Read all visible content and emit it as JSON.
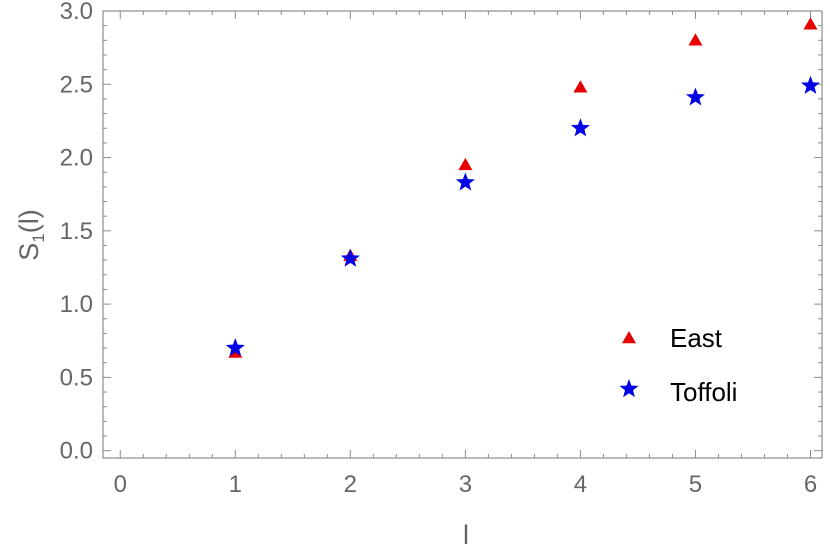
{
  "chart_data": {
    "type": "scatter",
    "title": "",
    "xlabel": "l",
    "ylabel_main": "S",
    "ylabel_sub": "1",
    "ylabel_tail": "(l)",
    "xlim": [
      -0.15,
      6.1
    ],
    "ylim": [
      -0.05,
      3.0
    ],
    "x_ticks": [
      0,
      1,
      2,
      3,
      4,
      5,
      6
    ],
    "x_tick_labels": [
      "0",
      "1",
      "2",
      "3",
      "4",
      "5",
      "6"
    ],
    "y_ticks": [
      0.0,
      0.5,
      1.0,
      1.5,
      2.0,
      2.5,
      3.0
    ],
    "y_tick_labels": [
      "0.0",
      "0.5",
      "1.0",
      "1.5",
      "2.0",
      "2.5",
      "3.0"
    ],
    "grid": false,
    "legend_position": "bottom-right",
    "series": [
      {
        "name": "East",
        "marker": "triangle",
        "color": "#e60000",
        "x": [
          1,
          2,
          3,
          4,
          5,
          6
        ],
        "y": [
          0.67,
          1.33,
          1.95,
          2.48,
          2.8,
          2.91
        ]
      },
      {
        "name": "Toffoli",
        "marker": "star",
        "color": "#0000e6",
        "x": [
          1,
          2,
          3,
          4,
          5,
          6
        ],
        "y": [
          0.7,
          1.31,
          1.83,
          2.2,
          2.41,
          2.49
        ]
      }
    ]
  }
}
